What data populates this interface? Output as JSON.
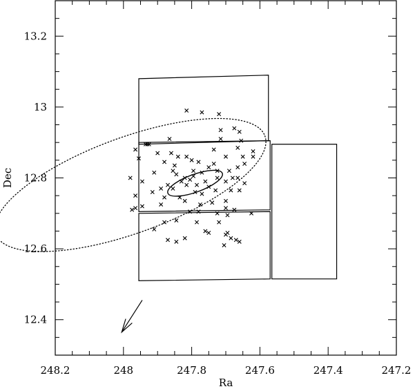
{
  "chart_data": {
    "type": "scatter",
    "title": "",
    "xlabel": "Ra",
    "ylabel": "Dec",
    "xlim": [
      248.2,
      247.2
    ],
    "ylim": [
      12.3,
      13.3
    ],
    "x_inverted": true,
    "grid": false,
    "xticks": [
      "248.2",
      "248",
      "247.8",
      "247.6",
      "247.4",
      "247.2"
    ],
    "yticks": [
      "12.4",
      "12.6",
      "12.8",
      "13",
      "13.2"
    ],
    "points": [
      [
        247.815,
        12.99
      ],
      [
        247.77,
        12.985
      ],
      [
        247.72,
        12.98
      ],
      [
        247.675,
        12.94
      ],
      [
        247.715,
        12.935
      ],
      [
        247.66,
        12.93
      ],
      [
        247.715,
        12.91
      ],
      [
        247.655,
        12.905
      ],
      [
        247.865,
        12.91
      ],
      [
        247.925,
        12.895
      ],
      [
        247.93,
        12.895
      ],
      [
        247.935,
        12.895
      ],
      [
        247.965,
        12.88
      ],
      [
        247.735,
        12.88
      ],
      [
        247.665,
        12.885
      ],
      [
        247.62,
        12.875
      ],
      [
        247.9,
        12.87
      ],
      [
        247.86,
        12.87
      ],
      [
        247.84,
        12.86
      ],
      [
        247.815,
        12.86
      ],
      [
        247.7,
        12.86
      ],
      [
        247.65,
        12.86
      ],
      [
        247.62,
        12.86
      ],
      [
        247.955,
        12.855
      ],
      [
        247.88,
        12.845
      ],
      [
        247.8,
        12.85
      ],
      [
        247.78,
        12.845
      ],
      [
        247.735,
        12.84
      ],
      [
        247.645,
        12.84
      ],
      [
        247.85,
        12.835
      ],
      [
        247.75,
        12.83
      ],
      [
        247.665,
        12.83
      ],
      [
        247.855,
        12.82
      ],
      [
        247.795,
        12.82
      ],
      [
        247.77,
        12.815
      ],
      [
        247.725,
        12.82
      ],
      [
        247.69,
        12.82
      ],
      [
        247.91,
        12.815
      ],
      [
        247.845,
        12.81
      ],
      [
        247.82,
        12.8
      ],
      [
        247.795,
        12.805
      ],
      [
        247.725,
        12.8
      ],
      [
        247.68,
        12.8
      ],
      [
        247.665,
        12.8
      ],
      [
        247.98,
        12.8
      ],
      [
        247.945,
        12.79
      ],
      [
        247.83,
        12.79
      ],
      [
        247.805,
        12.795
      ],
      [
        247.76,
        12.79
      ],
      [
        247.7,
        12.79
      ],
      [
        247.645,
        12.785
      ],
      [
        247.87,
        12.78
      ],
      [
        247.815,
        12.78
      ],
      [
        247.785,
        12.78
      ],
      [
        247.75,
        12.775
      ],
      [
        247.89,
        12.77
      ],
      [
        247.855,
        12.77
      ],
      [
        247.73,
        12.765
      ],
      [
        247.685,
        12.765
      ],
      [
        247.66,
        12.765
      ],
      [
        247.79,
        12.76
      ],
      [
        247.77,
        12.755
      ],
      [
        247.915,
        12.76
      ],
      [
        247.965,
        12.75
      ],
      [
        247.88,
        12.745
      ],
      [
        247.835,
        12.745
      ],
      [
        247.82,
        12.735
      ],
      [
        247.7,
        12.735
      ],
      [
        247.74,
        12.73
      ],
      [
        247.775,
        12.725
      ],
      [
        247.89,
        12.725
      ],
      [
        247.945,
        12.72
      ],
      [
        247.965,
        12.715
      ],
      [
        247.975,
        12.71
      ],
      [
        247.7,
        12.715
      ],
      [
        247.675,
        12.71
      ],
      [
        247.805,
        12.705
      ],
      [
        247.78,
        12.705
      ],
      [
        247.695,
        12.695
      ],
      [
        247.725,
        12.7
      ],
      [
        247.625,
        12.7
      ],
      [
        247.845,
        12.68
      ],
      [
        247.88,
        12.675
      ],
      [
        247.785,
        12.675
      ],
      [
        247.72,
        12.675
      ],
      [
        247.91,
        12.655
      ],
      [
        247.76,
        12.65
      ],
      [
        247.75,
        12.645
      ],
      [
        247.695,
        12.645
      ],
      [
        247.7,
        12.64
      ],
      [
        247.87,
        12.625
      ],
      [
        247.845,
        12.62
      ],
      [
        247.82,
        12.63
      ],
      [
        247.685,
        12.63
      ],
      [
        247.66,
        12.62
      ],
      [
        247.705,
        12.61
      ],
      [
        247.67,
        12.625
      ]
    ],
    "boxes": [
      [
        [
          247.955,
          13.08
        ],
        [
          247.575,
          13.09
        ],
        [
          247.575,
          12.905
        ],
        [
          247.955,
          12.895
        ]
      ],
      [
        [
          247.955,
          12.9
        ],
        [
          247.57,
          12.905
        ],
        [
          247.57,
          12.71
        ],
        [
          247.955,
          12.705
        ]
      ],
      [
        [
          247.955,
          12.7
        ],
        [
          247.57,
          12.705
        ],
        [
          247.57,
          12.515
        ],
        [
          247.955,
          12.51
        ]
      ],
      [
        [
          247.565,
          12.895
        ],
        [
          247.375,
          12.895
        ],
        [
          247.375,
          12.515
        ],
        [
          247.565,
          12.515
        ]
      ]
    ],
    "ellipses": [
      {
        "center": [
          247.79,
          12.785
        ],
        "semi_axes_deg": [
          0.085,
          0.025
        ],
        "angle_deg": 20,
        "style": "solid"
      },
      {
        "center": [
          247.98,
          12.78
        ],
        "semi_axes_deg": [
          0.42,
          0.135
        ],
        "angle_deg": 20,
        "style": "dotted"
      }
    ],
    "arrow": {
      "from": [
        247.945,
        12.455
      ],
      "to": [
        248.005,
        12.365
      ]
    }
  }
}
